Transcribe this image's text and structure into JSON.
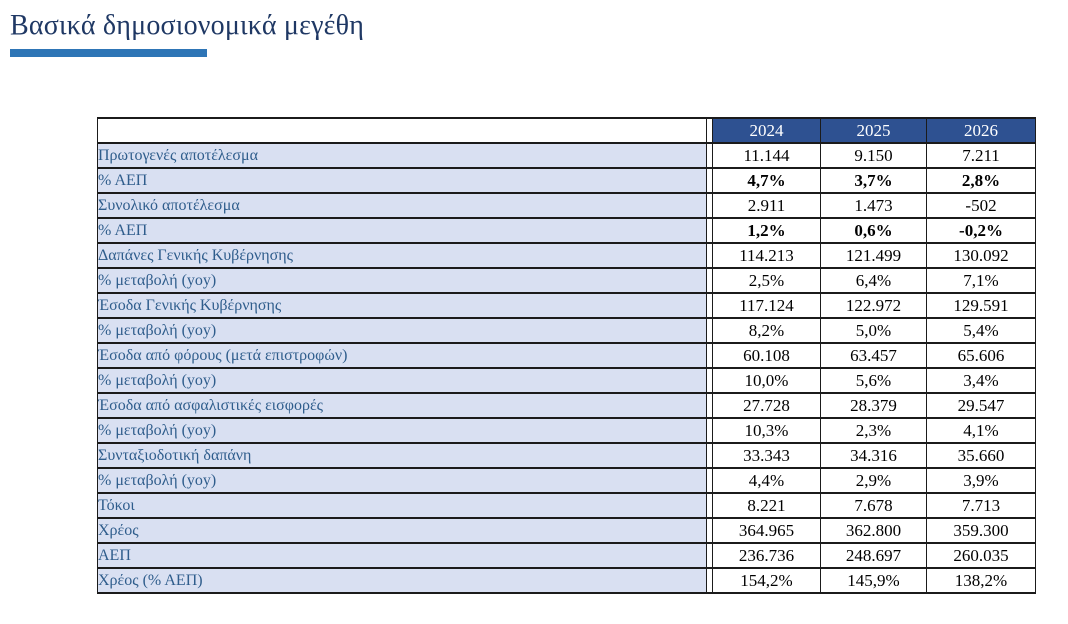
{
  "page": {
    "title": "Βασικά δημοσιονομικά μεγέθη"
  },
  "colors": {
    "title_text": "#1F3864",
    "title_underline": "#2E75B6",
    "header_bg": "#2E5191",
    "header_text": "#FFFFFF",
    "row_label_bg": "#D9E0F2",
    "row_label_text": "#2F5D8C",
    "value_text": "#000000",
    "border": "#1B1B1B"
  },
  "chart_data": {
    "type": "table",
    "title": "Βασικά δημοσιονομικά μεγέθη",
    "columns": [
      "",
      "2024",
      "2025",
      "2026"
    ],
    "rows": [
      {
        "label": "Πρωτογενές αποτέλεσμα",
        "values": [
          "11.144",
          "9.150",
          "7.211"
        ],
        "bold": false
      },
      {
        "label": "% ΑΕΠ",
        "values": [
          "4,7%",
          "3,7%",
          "2,8%"
        ],
        "bold": true
      },
      {
        "label": "Συνολικό αποτέλεσμα",
        "values": [
          "2.911",
          "1.473",
          "-502"
        ],
        "bold": false
      },
      {
        "label": "% ΑΕΠ",
        "values": [
          "1,2%",
          "0,6%",
          "-0,2%"
        ],
        "bold": true
      },
      {
        "label": "Δαπάνες Γενικής Κυβέρνησης",
        "values": [
          "114.213",
          "121.499",
          "130.092"
        ],
        "bold": false
      },
      {
        "label": "% μεταβολή (yoy)",
        "values": [
          "2,5%",
          "6,4%",
          "7,1%"
        ],
        "bold": false
      },
      {
        "label": "Έσοδα Γενικής Κυβέρνησης",
        "values": [
          "117.124",
          "122.972",
          "129.591"
        ],
        "bold": false
      },
      {
        "label": "% μεταβολή (yoy)",
        "values": [
          "8,2%",
          "5,0%",
          "5,4%"
        ],
        "bold": false
      },
      {
        "label": "Έσοδα από φόρους (μετά επιστροφών)",
        "values": [
          "60.108",
          "63.457",
          "65.606"
        ],
        "bold": false
      },
      {
        "label": "% μεταβολή (yoy)",
        "values": [
          "10,0%",
          "5,6%",
          "3,4%"
        ],
        "bold": false
      },
      {
        "label": "Έσοδα από ασφαλιστικές εισφορές",
        "values": [
          "27.728",
          "28.379",
          "29.547"
        ],
        "bold": false
      },
      {
        "label": "% μεταβολή (yoy)",
        "values": [
          "10,3%",
          "2,3%",
          "4,1%"
        ],
        "bold": false
      },
      {
        "label": "Συνταξιοδοτική δαπάνη",
        "values": [
          "33.343",
          "34.316",
          "35.660"
        ],
        "bold": false
      },
      {
        "label": "% μεταβολή (yoy)",
        "values": [
          "4,4%",
          "2,9%",
          "3,9%"
        ],
        "bold": false
      },
      {
        "label": "Τόκοι",
        "values": [
          "8.221",
          "7.678",
          "7.713"
        ],
        "bold": false
      },
      {
        "label": "Χρέος",
        "values": [
          "364.965",
          "362.800",
          "359.300"
        ],
        "bold": false
      },
      {
        "label": "ΑΕΠ",
        "values": [
          "236.736",
          "248.697",
          "260.035"
        ],
        "bold": false
      },
      {
        "label": "Χρέος (% ΑΕΠ)",
        "values": [
          "154,2%",
          "145,9%",
          "138,2%"
        ],
        "bold": false
      }
    ]
  }
}
